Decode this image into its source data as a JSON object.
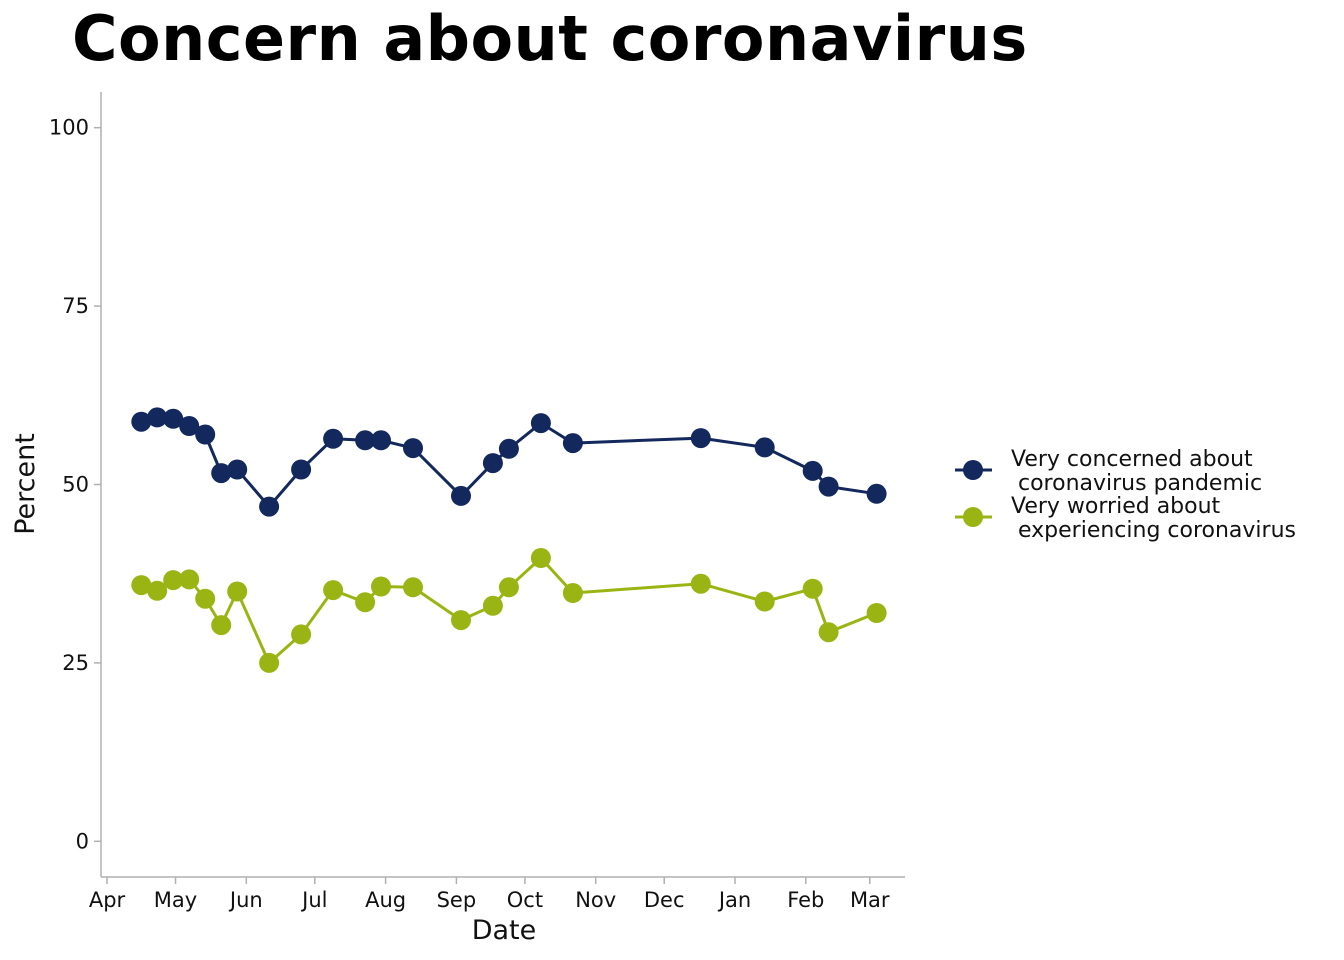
{
  "chart_data": {
    "type": "line",
    "title": "Concern about coronavirus",
    "xlabel": "Date",
    "ylabel": "Percent",
    "ylim": [
      -5,
      105
    ],
    "x_ticks": [
      "Apr",
      "May",
      "Jun",
      "Jul",
      "Aug",
      "Sep",
      "Oct",
      "Nov",
      "Dec",
      "Jan",
      "Feb",
      "Mar"
    ],
    "y_ticks": [
      0,
      25,
      50,
      75,
      100
    ],
    "grid": false,
    "legend_position": "right",
    "colors": {
      "series_1": "#13285c",
      "series_2": "#9ab513",
      "axis": "#b0b0b0"
    },
    "series": [
      {
        "name": "Very concerned about\n coronavirus pandemic",
        "x": [
          "2020-04-16",
          "2020-04-23",
          "2020-04-30",
          "2020-05-07",
          "2020-05-14",
          "2020-05-21",
          "2020-05-28",
          "2020-06-11",
          "2020-06-25",
          "2020-07-09",
          "2020-07-23",
          "2020-07-30",
          "2020-08-13",
          "2020-09-03",
          "2020-09-17",
          "2020-09-24",
          "2020-10-08",
          "2020-10-22",
          "2020-12-17",
          "2021-01-14",
          "2021-02-04",
          "2021-02-11",
          "2021-03-04"
        ],
        "values": [
          58.8,
          59.4,
          59.2,
          58.2,
          57.0,
          51.6,
          52.1,
          46.9,
          52.1,
          56.4,
          56.2,
          56.2,
          55.1,
          48.4,
          53.0,
          55.0,
          58.6,
          55.8,
          56.5,
          55.2,
          51.9,
          49.7,
          48.7
        ]
      },
      {
        "name": "Very worried about\n experiencing coronavirus",
        "x": [
          "2020-04-16",
          "2020-04-23",
          "2020-04-30",
          "2020-05-07",
          "2020-05-14",
          "2020-05-21",
          "2020-05-28",
          "2020-06-11",
          "2020-06-25",
          "2020-07-09",
          "2020-07-23",
          "2020-07-30",
          "2020-08-13",
          "2020-09-03",
          "2020-09-17",
          "2020-09-24",
          "2020-10-08",
          "2020-10-22",
          "2020-12-17",
          "2021-01-14",
          "2021-02-04",
          "2021-02-11",
          "2021-03-04"
        ],
        "values": [
          35.9,
          35.1,
          36.6,
          36.7,
          34.0,
          30.3,
          35.0,
          25.0,
          29.0,
          35.2,
          33.5,
          35.7,
          35.6,
          31.0,
          33.0,
          35.6,
          39.7,
          34.8,
          36.1,
          33.6,
          35.4,
          29.3,
          32.0
        ]
      }
    ]
  }
}
